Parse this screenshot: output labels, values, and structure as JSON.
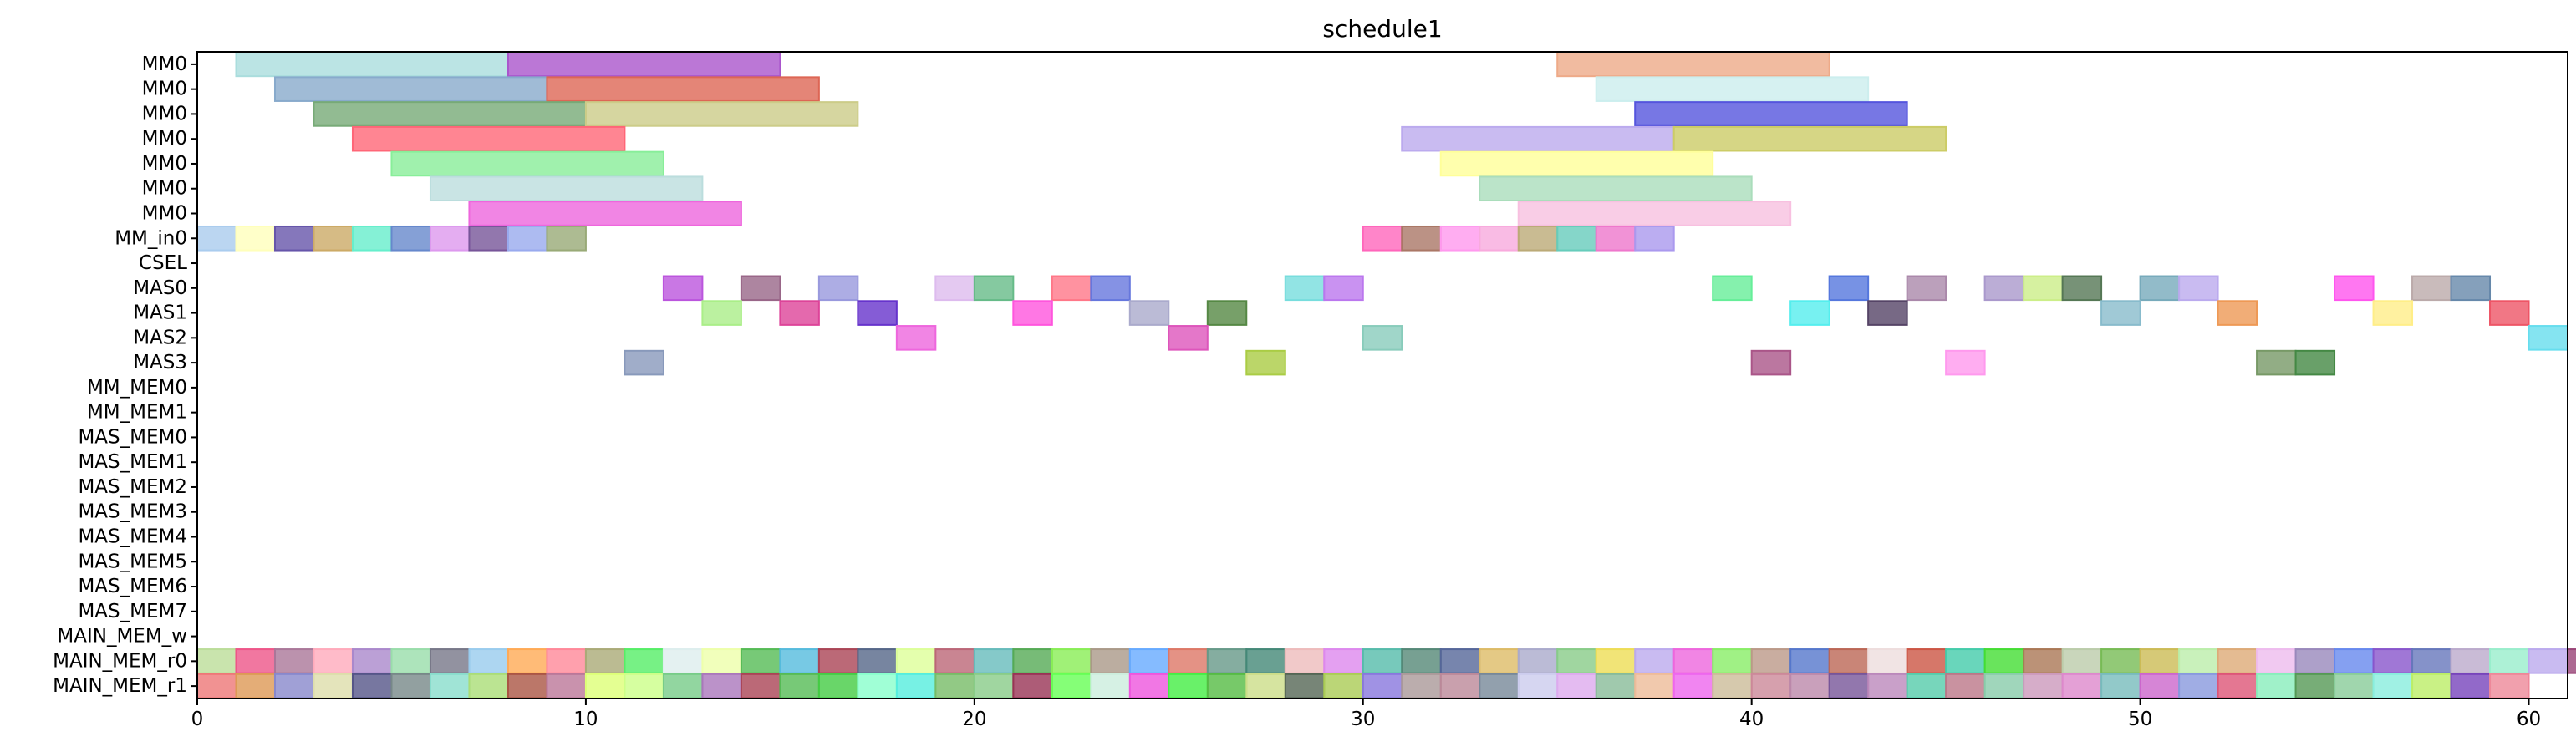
{
  "chart_data": {
    "type": "gantt",
    "title": "schedule1",
    "xlim": [
      0,
      61
    ],
    "xticks": [
      0,
      10,
      20,
      30,
      40,
      50,
      60
    ],
    "rows": [
      "MM0",
      "MM0",
      "MM0",
      "MM0",
      "MM0",
      "MM0",
      "MM0",
      "MM_in0",
      "CSEL",
      "MAS0",
      "MAS1",
      "MAS2",
      "MAS3",
      "MM_MEM0",
      "MM_MEM1",
      "MAS_MEM0",
      "MAS_MEM1",
      "MAS_MEM2",
      "MAS_MEM3",
      "MAS_MEM4",
      "MAS_MEM5",
      "MAS_MEM6",
      "MAS_MEM7",
      "MAIN_MEM_w",
      "MAIN_MEM_r0",
      "MAIN_MEM_r1"
    ],
    "tasks": [
      {
        "row": 0,
        "start": 1,
        "end": 8,
        "color": "#aadddd"
      },
      {
        "row": 0,
        "start": 8,
        "end": 15,
        "color": "#aa55cc"
      },
      {
        "row": 0,
        "start": 35,
        "end": 42,
        "color": "#eeaa88"
      },
      {
        "row": 1,
        "start": 2,
        "end": 9,
        "color": "#88aacc"
      },
      {
        "row": 1,
        "start": 9,
        "end": 16,
        "color": "#dd6655"
      },
      {
        "row": 1,
        "start": 36,
        "end": 43,
        "color": "#cceeee"
      },
      {
        "row": 2,
        "start": 3,
        "end": 10,
        "color": "#77aa77"
      },
      {
        "row": 2,
        "start": 10,
        "end": 17,
        "color": "#cccc88"
      },
      {
        "row": 2,
        "start": 37,
        "end": 44,
        "color": "#5555dd"
      },
      {
        "row": 3,
        "start": 4,
        "end": 11,
        "color": "#ff6677"
      },
      {
        "row": 3,
        "start": 31,
        "end": 38,
        "color": "#bbaaee"
      },
      {
        "row": 3,
        "start": 38,
        "end": 45,
        "color": "#cccc66"
      },
      {
        "row": 4,
        "start": 5,
        "end": 12,
        "color": "#88ee99"
      },
      {
        "row": 4,
        "start": 32,
        "end": 39,
        "color": "#ffff99"
      },
      {
        "row": 5,
        "start": 6,
        "end": 13,
        "color": "#bbdddd"
      },
      {
        "row": 5,
        "start": 33,
        "end": 40,
        "color": "#aaddbb"
      },
      {
        "row": 6,
        "start": 7,
        "end": 14,
        "color": "#ee66dd"
      },
      {
        "row": 6,
        "start": 34,
        "end": 41,
        "color": "#f8c0e0"
      },
      {
        "row": 7,
        "start": 0,
        "end": 1,
        "color": "#aaccee"
      },
      {
        "row": 7,
        "start": 1,
        "end": 2,
        "color": "#ffffbb"
      },
      {
        "row": 7,
        "start": 2,
        "end": 3,
        "color": "#6655aa"
      },
      {
        "row": 7,
        "start": 3,
        "end": 4,
        "color": "#ccaa66"
      },
      {
        "row": 7,
        "start": 4,
        "end": 5,
        "color": "#66eecc"
      },
      {
        "row": 7,
        "start": 5,
        "end": 6,
        "color": "#6688cc"
      },
      {
        "row": 7,
        "start": 6,
        "end": 7,
        "color": "#dd99ee"
      },
      {
        "row": 7,
        "start": 7,
        "end": 8,
        "color": "#775599"
      },
      {
        "row": 7,
        "start": 8,
        "end": 9,
        "color": "#99aaee"
      },
      {
        "row": 7,
        "start": 9,
        "end": 10,
        "color": "#99aa77"
      },
      {
        "row": 7,
        "start": 30,
        "end": 31,
        "color": "#ff66bb"
      },
      {
        "row": 7,
        "start": 31,
        "end": 32,
        "color": "#aa7766"
      },
      {
        "row": 7,
        "start": 32,
        "end": 33,
        "color": "#ff99ee"
      },
      {
        "row": 7,
        "start": 33,
        "end": 34,
        "color": "#f8aadd"
      },
      {
        "row": 7,
        "start": 34,
        "end": 35,
        "color": "#bbaa77"
      },
      {
        "row": 7,
        "start": 35,
        "end": 36,
        "color": "#66ccbb"
      },
      {
        "row": 7,
        "start": 36,
        "end": 37,
        "color": "#ee77cc"
      },
      {
        "row": 7,
        "start": 37,
        "end": 38,
        "color": "#aa99ee"
      },
      {
        "row": 9,
        "start": 12,
        "end": 13,
        "color": "#bb55dd"
      },
      {
        "row": 9,
        "start": 14,
        "end": 15,
        "color": "#996688"
      },
      {
        "row": 9,
        "start": 16,
        "end": 17,
        "color": "#9999dd"
      },
      {
        "row": 9,
        "start": 19,
        "end": 20,
        "color": "#ddbbee"
      },
      {
        "row": 9,
        "start": 20,
        "end": 21,
        "color": "#66bb88"
      },
      {
        "row": 9,
        "start": 22,
        "end": 23,
        "color": "#ff7788"
      },
      {
        "row": 9,
        "start": 23,
        "end": 24,
        "color": "#6677dd"
      },
      {
        "row": 9,
        "start": 28,
        "end": 29,
        "color": "#77dddd"
      },
      {
        "row": 9,
        "start": 29,
        "end": 30,
        "color": "#bb77ee"
      },
      {
        "row": 9,
        "start": 39,
        "end": 40,
        "color": "#66ee99"
      },
      {
        "row": 9,
        "start": 42,
        "end": 43,
        "color": "#5577dd"
      },
      {
        "row": 9,
        "start": 44,
        "end": 45,
        "color": "#aa88aa"
      },
      {
        "row": 9,
        "start": 46,
        "end": 47,
        "color": "#aa99cc"
      },
      {
        "row": 9,
        "start": 47,
        "end": 48,
        "color": "#ccee88"
      },
      {
        "row": 9,
        "start": 48,
        "end": 49,
        "color": "#557755"
      },
      {
        "row": 9,
        "start": 50,
        "end": 51,
        "color": "#77aabb"
      },
      {
        "row": 9,
        "start": 51,
        "end": 52,
        "color": "#bbaaee"
      },
      {
        "row": 9,
        "start": 55,
        "end": 56,
        "color": "#ff55ee"
      },
      {
        "row": 9,
        "start": 57,
        "end": 58,
        "color": "#bbaaaa"
      },
      {
        "row": 9,
        "start": 58,
        "end": 59,
        "color": "#6688aa"
      },
      {
        "row": 10,
        "start": 13,
        "end": 14,
        "color": "#aaee88"
      },
      {
        "row": 10,
        "start": 15,
        "end": 16,
        "color": "#dd4499"
      },
      {
        "row": 10,
        "start": 17,
        "end": 18,
        "color": "#6633cc"
      },
      {
        "row": 10,
        "start": 21,
        "end": 22,
        "color": "#ff55dd"
      },
      {
        "row": 10,
        "start": 24,
        "end": 25,
        "color": "#aaaacc"
      },
      {
        "row": 10,
        "start": 26,
        "end": 27,
        "color": "#558844"
      },
      {
        "row": 10,
        "start": 41,
        "end": 42,
        "color": "#55eeee"
      },
      {
        "row": 10,
        "start": 43,
        "end": 44,
        "color": "#554466"
      },
      {
        "row": 10,
        "start": 49,
        "end": 50,
        "color": "#88bbcc"
      },
      {
        "row": 10,
        "start": 52,
        "end": 53,
        "color": "#ee9955"
      },
      {
        "row": 10,
        "start": 56,
        "end": 57,
        "color": "#ffee88"
      },
      {
        "row": 10,
        "start": 59,
        "end": 60,
        "color": "#ee5566"
      },
      {
        "row": 11,
        "start": 18,
        "end": 19,
        "color": "#ee66dd"
      },
      {
        "row": 11,
        "start": 25,
        "end": 26,
        "color": "#dd55bb"
      },
      {
        "row": 11,
        "start": 30,
        "end": 31,
        "color": "#88ccbb"
      },
      {
        "row": 11,
        "start": 60,
        "end": 61,
        "color": "#66ddee"
      },
      {
        "row": 12,
        "start": 11,
        "end": 12,
        "color": "#8899bb"
      },
      {
        "row": 12,
        "start": 27,
        "end": 28,
        "color": "#aacc44"
      },
      {
        "row": 12,
        "start": 40,
        "end": 41,
        "color": "#aa5588"
      },
      {
        "row": 12,
        "start": 45,
        "end": 46,
        "color": "#ff99ee"
      },
      {
        "row": 12,
        "start": 53,
        "end": 54,
        "color": "#779966"
      },
      {
        "row": 12,
        "start": 54,
        "end": 55,
        "color": "#448844"
      }
    ],
    "main_mem_r0_colors": [
      "#bbdd99",
      "#ee5588",
      "#aa7799",
      "#ffaabb",
      "#aa88cc",
      "#99ddaa",
      "#777788",
      "#99ccee",
      "#ffaa55",
      "#ff8899",
      "#aaaa77",
      "#55ee66",
      "#ddeeee",
      "#eeffaa",
      "#55bb55",
      "#55bbdd",
      "#aa4455",
      "#556688",
      "#ddff99",
      "#bb6677",
      "#66bbbb",
      "#55aa55",
      "#88ee55",
      "#aa9988",
      "#66aaff",
      "#dd7766",
      "#669988",
      "#448877",
      "#eebbbb",
      "#dd88ee",
      "#55bbaa",
      "#558877",
      "#556699",
      "#ddbb66",
      "#aaaacc",
      "#88cc88",
      "#eedd55",
      "#bbaaee",
      "#ee66dd",
      "#88ee66",
      "#bb9988",
      "#5577cc",
      "#bb6655",
      "#eedddd",
      "#cc5544",
      "#44ccaa",
      "#44dd33",
      "#aa7755",
      "#bbccaa",
      "#77bb55",
      "#ccbb55",
      "#bbeeaa",
      "#ddaa77",
      "#eebbee",
      "#9988bb",
      "#6688ee",
      "#8855cc",
      "#6677bb",
      "#bbaacc",
      "#99eecc",
      "#bbaaee",
      "#994477",
      "#66eecc"
    ],
    "main_mem_r1_colors": [
      "#ee7777",
      "#dd9955",
      "#8888cc",
      "#ddddaa",
      "#555588",
      "#778888",
      "#88ddcc",
      "#aadd77",
      "#aa5544",
      "#bb7799",
      "#ddff77",
      "#ccff88",
      "#77cc88",
      "#aa77bb",
      "#aa4455",
      "#55bb55",
      "#44cc44",
      "#88ffcc",
      "#55eedd",
      "#77bb66",
      "#88cc88",
      "#993355",
      "#66ff55",
      "#cceedd",
      "#ee55dd",
      "#44ee44",
      "#55bb44",
      "#ccdd88",
      "#556655",
      "#aacc55",
      "#8877dd",
      "#aa9999",
      "#bb8899",
      "#778899",
      "#ccccee",
      "#ddaaee",
      "#88bb99",
      "#eebb99",
      "#ee66ee",
      "#ccbb99",
      "#cc8899",
      "#bb88aa",
      "#775599",
      "#bb88bb",
      "#55ccaa",
      "#bb7788",
      "#88ccaa",
      "#cc99bb",
      "#dd88cc",
      "#77bbbb",
      "#cc66cc",
      "#8899dd",
      "#dd5577",
      "#88eebb",
      "#559955",
      "#88cc99",
      "#88eedd",
      "#bbee66",
      "#7744bb",
      "#ee8899"
    ]
  }
}
